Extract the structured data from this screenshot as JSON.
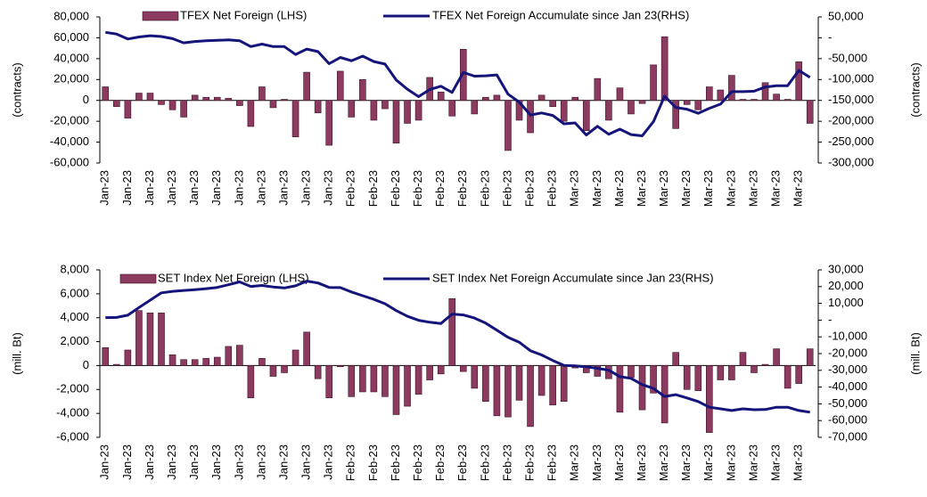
{
  "chart_data": [
    {
      "type": "combo",
      "y_label": "(contracts)",
      "y2_label": "(contracts)",
      "categories": [
        "Jan-23",
        null,
        "Jan-23",
        null,
        "Jan-23",
        null,
        "Jan-23",
        null,
        "Jan-23",
        null,
        "Jan-23",
        null,
        "Jan-23",
        null,
        "Jan-23",
        null,
        "Jan-23",
        null,
        "Jan-23",
        null,
        "Jan-23",
        null,
        "Feb-23",
        null,
        "Feb-23",
        null,
        "Feb-23",
        null,
        "Feb-23",
        null,
        "Feb-23",
        null,
        "Feb-23",
        null,
        "Feb-23",
        null,
        "Feb-23",
        null,
        "Feb-23",
        null,
        "Feb-23",
        null,
        "Mar-23",
        null,
        "Mar-23",
        null,
        "Mar-23",
        null,
        "Mar-23",
        null,
        "Mar-23",
        null,
        "Mar-23",
        null,
        "Mar-23",
        null,
        "Mar-23",
        null,
        "Mar-23",
        null,
        "Mar-23",
        null,
        "Mar-23",
        null
      ],
      "series": [
        {
          "name": "TFEX Net Foreign (LHS)",
          "type": "bar",
          "color": "#8c3a5f",
          "values": [
            13000,
            -6000,
            -17000,
            7000,
            7000,
            -4000,
            -9000,
            -16000,
            5000,
            3000,
            3000,
            2000,
            -5000,
            -25000,
            13000,
            -7000,
            1000,
            -35000,
            27000,
            -12000,
            -43000,
            28000,
            -16000,
            20000,
            -19000,
            -8000,
            -41000,
            -22000,
            -19000,
            22000,
            8000,
            -15000,
            49000,
            -13000,
            3000,
            5000,
            -48000,
            -19000,
            -31000,
            5000,
            -6000,
            -20000,
            3000,
            -29000,
            21000,
            -19000,
            12000,
            -13000,
            -3000,
            34000,
            61000,
            -27000,
            -4000,
            -9000,
            13000,
            10000,
            24000,
            1000,
            1000,
            17000,
            6000,
            1000,
            37000,
            -22000
          ]
        },
        {
          "name": "TFEX Net Foreign Accumulate since Jan 23(RHS)",
          "type": "line",
          "axis": "y2",
          "color": "#14147a",
          "values": [
            13000,
            9000,
            -3000,
            2000,
            5000,
            3000,
            -2000,
            -12000,
            -9000,
            -7000,
            -6000,
            -5000,
            -7000,
            -21000,
            -15000,
            -21000,
            -21000,
            -40000,
            -27000,
            -33000,
            -62000,
            -47000,
            -55000,
            -44000,
            -57000,
            -63000,
            -101000,
            -123000,
            -141000,
            -124000,
            -116000,
            -131000,
            -83000,
            -92000,
            -91000,
            -89000,
            -135000,
            -154000,
            -185000,
            -180000,
            -186000,
            -206000,
            -204000,
            -233000,
            -212000,
            -231000,
            -219000,
            -232000,
            -235000,
            -201000,
            -140000,
            -167000,
            -171000,
            -181000,
            -169000,
            -159000,
            -129000,
            -129000,
            -128000,
            -118000,
            -115000,
            -115000,
            -78000,
            -95000
          ]
        }
      ],
      "ylim": [
        -60000,
        80000
      ],
      "yticks": [
        {
          "value": -60000,
          "label": "-60,000"
        },
        {
          "value": -40000,
          "label": "-40,000"
        },
        {
          "value": -20000,
          "label": "-20,000"
        },
        0,
        {
          "value": 20000,
          "label": "20,000"
        },
        {
          "value": 40000,
          "label": "40,000"
        },
        {
          "value": 60000,
          "label": "60,000"
        },
        {
          "value": 80000,
          "label": "80,000"
        }
      ],
      "y2lim": [
        -300000,
        50000
      ],
      "y2ticks": [
        {
          "value": -300000,
          "label": "-300,000"
        },
        {
          "value": -250000,
          "label": "-250,000"
        },
        {
          "value": -200000,
          "label": "-200,000"
        },
        {
          "value": -150000,
          "label": "-150,000"
        },
        {
          "value": -100000,
          "label": "-100,000"
        },
        {
          "value": -50000,
          "label": "-50,000"
        },
        {
          "value": 0,
          "label": "-"
        },
        {
          "value": 50000,
          "label": "50,000"
        }
      ],
      "grid": false
    },
    {
      "type": "combo",
      "y_label": "(mill. Bt)",
      "y2_label": "(mill. Bt)",
      "categories": [
        "Jan-23",
        null,
        "Jan-23",
        null,
        "Jan-23",
        null,
        "Jan-23",
        null,
        "Jan-23",
        null,
        "Jan-23",
        null,
        "Jan-23",
        null,
        "Jan-23",
        null,
        "Jan-23",
        null,
        "Jan-23",
        null,
        "Jan-23",
        null,
        "Feb-23",
        null,
        "Feb-23",
        null,
        "Feb-23",
        null,
        "Feb-23",
        null,
        "Feb-23",
        null,
        "Feb-23",
        null,
        "Feb-23",
        null,
        "Feb-23",
        null,
        "Feb-23",
        null,
        "Feb-23",
        null,
        "Mar-23",
        null,
        "Mar-23",
        null,
        "Mar-23",
        null,
        "Mar-23",
        null,
        "Mar-23",
        null,
        "Mar-23",
        null,
        "Mar-23",
        null,
        "Mar-23",
        null,
        "Mar-23",
        null,
        "Mar-23",
        null,
        "Mar-23",
        null
      ],
      "series": [
        {
          "name": "SET Index Net Foreign (LHS)",
          "type": "bar",
          "color": "#8c3a5f",
          "values": [
            1500,
            100,
            1300,
            4600,
            4400,
            4400,
            900,
            500,
            500,
            600,
            700,
            1600,
            1700,
            -2700,
            600,
            -900,
            -600,
            1300,
            2800,
            -1100,
            -2700,
            -100,
            -2600,
            -2200,
            -2200,
            -2600,
            -4100,
            -3400,
            -2400,
            -1200,
            -700,
            5600,
            -500,
            -1900,
            -3000,
            -4200,
            -4300,
            -2900,
            -5100,
            -2500,
            -3300,
            -3000,
            -200,
            -600,
            -900,
            -1100,
            -3900,
            -1000,
            -3700,
            -2300,
            -4800,
            1100,
            -2000,
            -2100,
            -5600,
            -1200,
            -1200,
            1100,
            -600,
            100,
            1400,
            -1900,
            -1500,
            1400
          ]
        },
        {
          "name": "SET Index Net Foreign Accumulate since Jan 23(RHS)",
          "type": "line",
          "axis": "y2",
          "color": "#14147a",
          "values": [
            1500,
            1600,
            2900,
            7500,
            11900,
            16300,
            17200,
            17700,
            18200,
            18800,
            19500,
            21100,
            22800,
            20100,
            20700,
            19800,
            19200,
            20500,
            23300,
            22200,
            19500,
            19400,
            16800,
            14600,
            12400,
            9800,
            5700,
            2300,
            -100,
            -1300,
            -2000,
            3600,
            3100,
            1200,
            -1800,
            -6000,
            -10300,
            -13200,
            -18300,
            -20800,
            -24100,
            -27100,
            -27300,
            -27900,
            -28800,
            -29900,
            -33800,
            -34800,
            -38500,
            -40800,
            -45600,
            -44500,
            -46500,
            -48600,
            -52000,
            -53000,
            -54000,
            -53000,
            -53500,
            -53400,
            -52000,
            -52000,
            -54000,
            -55000
          ]
        }
      ],
      "ylim": [
        -6000,
        8000
      ],
      "yticks": [
        {
          "value": -6000,
          "label": "-6,000"
        },
        {
          "value": -4000,
          "label": "-4,000"
        },
        {
          "value": -2000,
          "label": "-2,000"
        },
        0,
        {
          "value": 2000,
          "label": "2,000"
        },
        {
          "value": 4000,
          "label": "4,000"
        },
        {
          "value": 6000,
          "label": "6,000"
        },
        {
          "value": 8000,
          "label": "8,000"
        }
      ],
      "y2lim": [
        -70000,
        30000
      ],
      "y2ticks": [
        {
          "value": -70000,
          "label": "-70,000"
        },
        {
          "value": -60000,
          "label": "-60,000"
        },
        {
          "value": -50000,
          "label": "-50,000"
        },
        {
          "value": -40000,
          "label": "-40,000"
        },
        {
          "value": -30000,
          "label": "-30,000"
        },
        {
          "value": -20000,
          "label": "-20,000"
        },
        {
          "value": -10000,
          "label": "-10,000"
        },
        {
          "value": 0,
          "label": "-"
        },
        {
          "value": 10000,
          "label": "10,000"
        },
        {
          "value": 20000,
          "label": "20,000"
        },
        {
          "value": 30000,
          "label": "30,000"
        }
      ],
      "grid": false
    }
  ]
}
